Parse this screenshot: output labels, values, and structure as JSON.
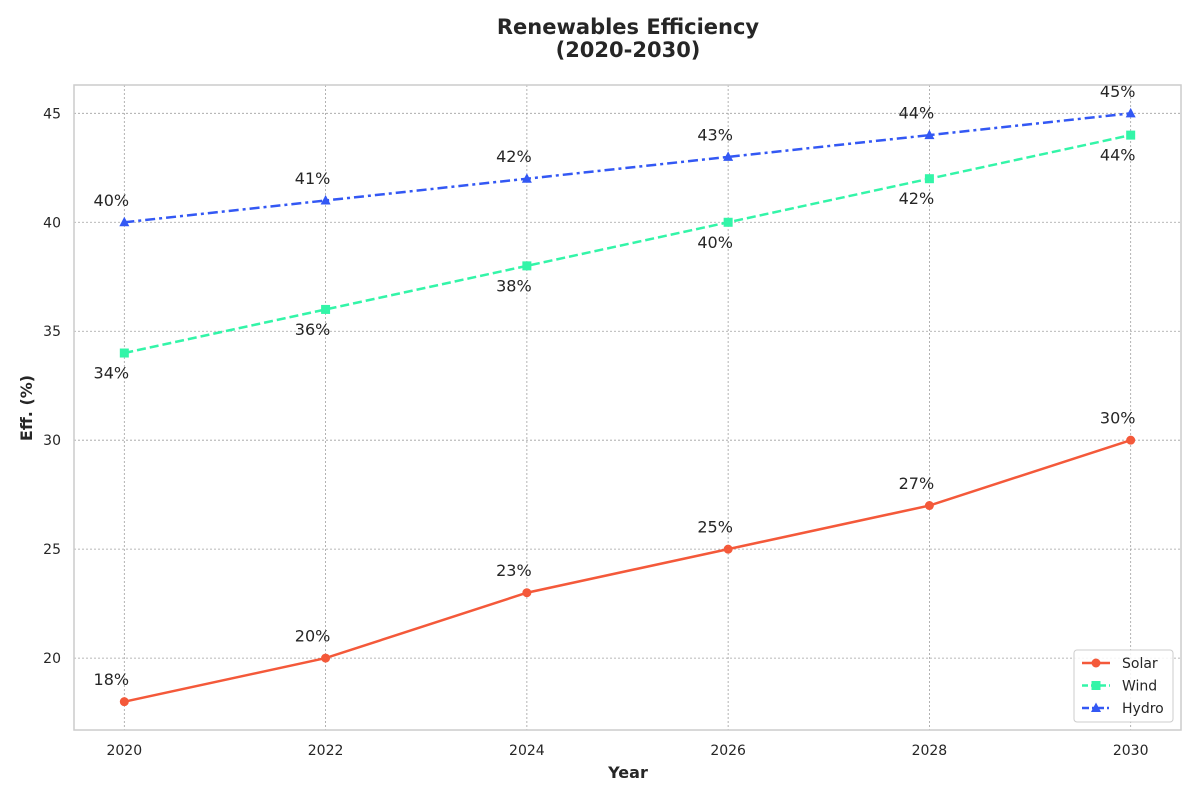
{
  "chart_data": {
    "type": "line",
    "title_lines": [
      "Renewables Efficiency",
      "(2020-2030)"
    ],
    "xlabel": "Year",
    "ylabel": "Eff. (%)",
    "x": [
      2020,
      2022,
      2024,
      2026,
      2028,
      2030
    ],
    "x_tick_labels": [
      "2020",
      "2022",
      "2024",
      "2026",
      "2028",
      "2030"
    ],
    "xlim": [
      2019.5,
      2030.5
    ],
    "y_ticks": [
      20,
      25,
      30,
      35,
      40,
      45
    ],
    "y_tick_labels": [
      "20",
      "25",
      "30",
      "35",
      "40",
      "45"
    ],
    "ylim": [
      16.7,
      46.3
    ],
    "grid": true,
    "legend_position": "lower-right",
    "series": [
      {
        "name": "Solar",
        "values": [
          18,
          20,
          23,
          25,
          27,
          30
        ],
        "labels": [
          "18%",
          "20%",
          "23%",
          "25%",
          "27%",
          "30%"
        ],
        "label_position": "above",
        "color": "#f4593a",
        "marker": "circle",
        "line_style": "solid"
      },
      {
        "name": "Wind",
        "values": [
          34,
          36,
          38,
          40,
          42,
          44
        ],
        "labels": [
          "34%",
          "36%",
          "38%",
          "40%",
          "42%",
          "44%"
        ],
        "label_position": "below",
        "color": "#33f5a8",
        "marker": "square",
        "line_style": "dashed"
      },
      {
        "name": "Hydro",
        "values": [
          40,
          41,
          42,
          43,
          44,
          45
        ],
        "labels": [
          "40%",
          "41%",
          "42%",
          "43%",
          "44%",
          "45%"
        ],
        "label_position": "above",
        "color": "#3358f4",
        "marker": "triangle",
        "line_style": "dashdot"
      }
    ]
  }
}
